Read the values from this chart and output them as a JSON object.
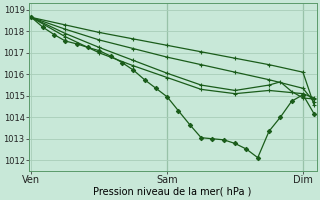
{
  "xlabel": "Pression niveau de la mer( hPa )",
  "bg_color": "#c8e8d8",
  "grid_color": "#a8cdb8",
  "line_color": "#1a5c1a",
  "xtick_labels": [
    "Ven",
    "Sam",
    "Dim"
  ],
  "xtick_positions": [
    0.0,
    1.0,
    2.0
  ],
  "ylim": [
    1011.5,
    1019.3
  ],
  "xlim": [
    -0.02,
    2.1
  ],
  "yticks": [
    1012,
    1013,
    1014,
    1015,
    1016,
    1017,
    1018,
    1019
  ],
  "series": [
    {
      "points": [
        [
          0.0,
          1018.65
        ],
        [
          0.083,
          1018.2
        ],
        [
          0.167,
          1017.85
        ],
        [
          0.25,
          1017.55
        ],
        [
          0.333,
          1017.42
        ],
        [
          0.417,
          1017.25
        ],
        [
          0.5,
          1017.1
        ],
        [
          0.583,
          1016.85
        ],
        [
          0.667,
          1016.55
        ],
        [
          0.75,
          1016.2
        ],
        [
          0.833,
          1015.75
        ],
        [
          0.917,
          1015.35
        ],
        [
          1.0,
          1014.95
        ],
        [
          1.083,
          1014.3
        ],
        [
          1.167,
          1013.65
        ],
        [
          1.25,
          1013.05
        ],
        [
          1.333,
          1013.0
        ],
        [
          1.417,
          1012.95
        ],
        [
          1.5,
          1012.78
        ],
        [
          1.583,
          1012.52
        ],
        [
          1.667,
          1012.12
        ],
        [
          1.75,
          1013.35
        ],
        [
          1.833,
          1014.0
        ],
        [
          1.917,
          1014.75
        ],
        [
          2.0,
          1015.05
        ],
        [
          2.083,
          1014.15
        ]
      ],
      "marker": "D",
      "markersize": 2.2
    },
    {
      "points": [
        [
          0.0,
          1018.65
        ],
        [
          0.25,
          1018.3
        ],
        [
          0.5,
          1017.95
        ],
        [
          0.75,
          1017.65
        ],
        [
          1.0,
          1017.35
        ],
        [
          1.25,
          1017.05
        ],
        [
          1.5,
          1016.75
        ],
        [
          1.75,
          1016.45
        ],
        [
          2.0,
          1016.1
        ],
        [
          2.083,
          1014.55
        ]
      ],
      "marker": "+",
      "markersize": 3.5
    },
    {
      "points": [
        [
          0.0,
          1018.65
        ],
        [
          0.25,
          1018.1
        ],
        [
          0.5,
          1017.6
        ],
        [
          0.75,
          1017.2
        ],
        [
          1.0,
          1016.8
        ],
        [
          1.25,
          1016.45
        ],
        [
          1.5,
          1016.1
        ],
        [
          1.75,
          1015.75
        ],
        [
          2.0,
          1015.35
        ],
        [
          2.083,
          1014.7
        ]
      ],
      "marker": "+",
      "markersize": 3.5
    },
    {
      "points": [
        [
          0.0,
          1018.65
        ],
        [
          0.25,
          1017.9
        ],
        [
          0.5,
          1017.25
        ],
        [
          0.75,
          1016.65
        ],
        [
          1.0,
          1016.05
        ],
        [
          1.25,
          1015.5
        ],
        [
          1.5,
          1015.25
        ],
        [
          1.75,
          1015.5
        ],
        [
          1.833,
          1015.65
        ],
        [
          1.917,
          1015.2
        ],
        [
          2.0,
          1014.9
        ],
        [
          2.083,
          1014.85
        ]
      ],
      "marker": "+",
      "markersize": 3.5
    },
    {
      "points": [
        [
          0.0,
          1018.65
        ],
        [
          0.25,
          1017.75
        ],
        [
          0.5,
          1017.0
        ],
        [
          0.75,
          1016.4
        ],
        [
          1.0,
          1015.85
        ],
        [
          1.25,
          1015.3
        ],
        [
          1.5,
          1015.1
        ],
        [
          1.75,
          1015.25
        ],
        [
          2.0,
          1015.1
        ],
        [
          2.083,
          1014.9
        ]
      ],
      "marker": "+",
      "markersize": 3.5
    }
  ]
}
